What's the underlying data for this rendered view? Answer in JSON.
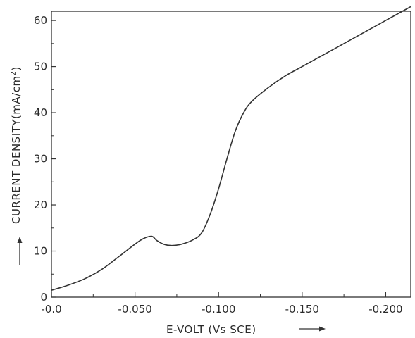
{
  "chart_data": {
    "type": "line",
    "title": "",
    "xlabel": "E-VOLT (Vs SCE)",
    "ylabel": "CURRENT DENSITY(mA/cm",
    "ylabel_superscript": "2",
    "ylabel_suffix": ")",
    "xlim": [
      0.0,
      -0.215
    ],
    "ylim": [
      0,
      62
    ],
    "x_axis_reversed_negative": true,
    "grid": false,
    "legend": "none",
    "x_ticks": [
      {
        "value": 0.0,
        "label": "-0.0"
      },
      {
        "value": -0.05,
        "label": "-0.050"
      },
      {
        "value": -0.1,
        "label": "-0.100"
      },
      {
        "value": -0.15,
        "label": "-0.150"
      },
      {
        "value": -0.2,
        "label": "-0.200"
      }
    ],
    "y_ticks": [
      {
        "value": 0,
        "label": "0"
      },
      {
        "value": 10,
        "label": "10"
      },
      {
        "value": 20,
        "label": "20"
      },
      {
        "value": 30,
        "label": "30"
      },
      {
        "value": 40,
        "label": "40"
      },
      {
        "value": 50,
        "label": "50"
      },
      {
        "value": 60,
        "label": "60"
      }
    ],
    "series": [
      {
        "color": "#333333",
        "x": [
          0.0,
          -0.01,
          -0.02,
          -0.03,
          -0.04,
          -0.05,
          -0.055,
          -0.06,
          -0.063,
          -0.067,
          -0.072,
          -0.078,
          -0.085,
          -0.09,
          -0.095,
          -0.1,
          -0.105,
          -0.11,
          -0.115,
          -0.12,
          -0.13,
          -0.14,
          -0.15,
          -0.16,
          -0.17,
          -0.18,
          -0.19,
          -0.2,
          -0.21,
          -0.215
        ],
        "y": [
          1.5,
          2.6,
          4.0,
          6.0,
          8.7,
          11.5,
          12.7,
          13.2,
          12.3,
          11.5,
          11.2,
          11.5,
          12.5,
          14.0,
          18.0,
          23.5,
          30.0,
          36.0,
          40.0,
          42.5,
          45.5,
          48.0,
          50.0,
          52.0,
          54.0,
          56.0,
          58.0,
          60.0,
          62.0,
          63.0
        ]
      }
    ]
  }
}
